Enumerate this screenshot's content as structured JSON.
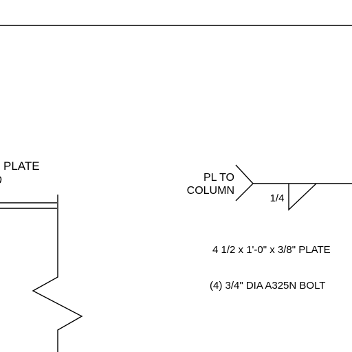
{
  "drawing": {
    "left_callout": {
      "line1": "PLATE"
    },
    "weld_symbol": {
      "tail_line1": "PL TO",
      "tail_line2": "COLUMN",
      "weld_size": "1/4"
    },
    "notes": {
      "plate_spec": "4 1/2 x 1'-0\" x 3/8\" PLATE",
      "bolt_spec": "(4) 3/4\" DIA A325N BOLT"
    }
  },
  "colors": {
    "line": "#000000",
    "background": "#ffffff"
  }
}
